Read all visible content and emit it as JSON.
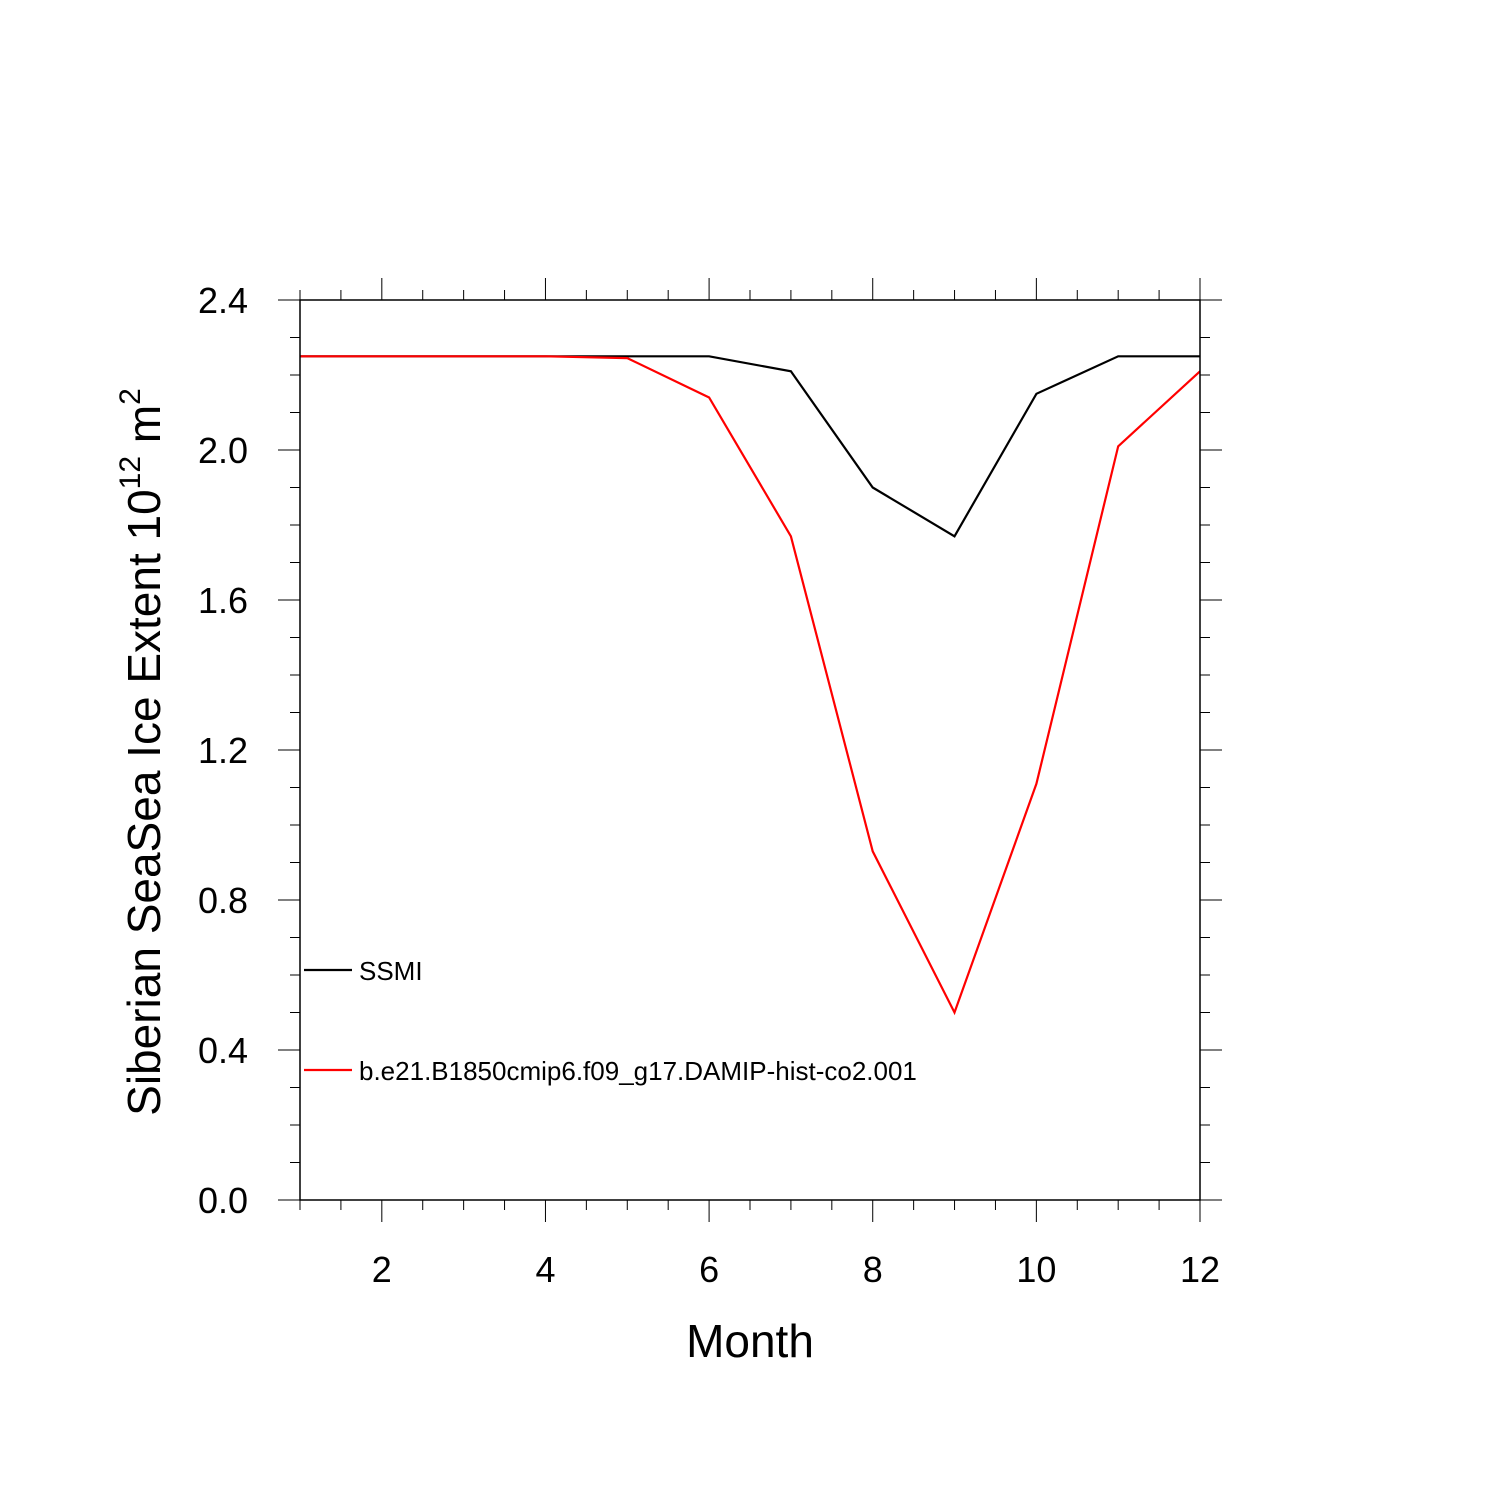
{
  "chart_data": {
    "type": "line",
    "title": "",
    "xlabel": "Month",
    "ylabel": {
      "text": "Siberian SeaSea Ice Extent 10",
      "exponent": "12",
      "unit": "m",
      "unit_exponent": "2"
    },
    "xlim": [
      1,
      12
    ],
    "ylim": [
      0,
      2.4
    ],
    "x_ticks": [
      2,
      4,
      6,
      8,
      10,
      12
    ],
    "x_tick_labels": [
      "2",
      "4",
      "6",
      "8",
      "10",
      "12"
    ],
    "y_ticks": [
      0,
      0.4,
      0.8,
      1.2,
      1.6,
      2.0,
      2.4
    ],
    "y_tick_labels": [
      "0.0",
      "0.4",
      "0.8",
      "1.2",
      "1.6",
      "2.0",
      "2.4"
    ],
    "grid": false,
    "legend_position": "lower-left",
    "x": [
      1,
      2,
      3,
      4,
      5,
      6,
      7,
      8,
      9,
      10,
      11,
      12
    ],
    "series": [
      {
        "name": "SSMI",
        "color": "#000000",
        "values": [
          2.25,
          2.25,
          2.25,
          2.25,
          2.25,
          2.25,
          2.21,
          1.9,
          1.77,
          2.15,
          2.25,
          2.25
        ]
      },
      {
        "name": "b.e21.B1850cmip6.f09_g17.DAMIP-hist-co2.001",
        "color": "#ff0000",
        "values": [
          2.25,
          2.25,
          2.25,
          2.25,
          2.245,
          2.14,
          1.77,
          0.93,
          0.5,
          1.11,
          2.01,
          2.21
        ]
      }
    ]
  }
}
